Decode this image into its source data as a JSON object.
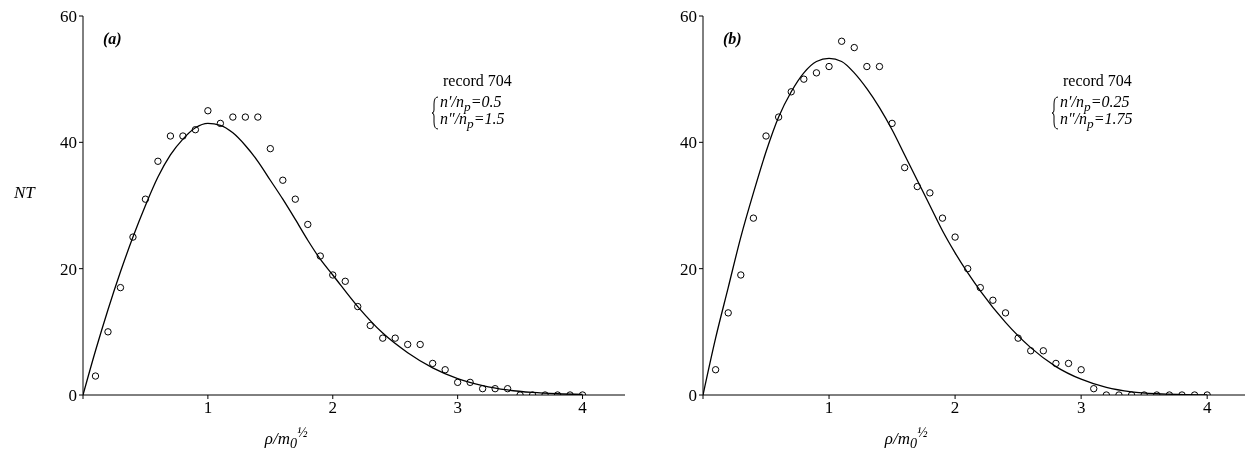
{
  "chart_data": [
    {
      "type": "scatter",
      "xlabel": "ρ/m$_{0}$$^{½}$",
      "ylabel": "NT",
      "xlim": [
        0,
        4.34
      ],
      "ylim": [
        0,
        60
      ],
      "xticks": [
        {
          "value": 0,
          "label": null
        },
        1,
        2,
        3,
        4
      ],
      "yticks": [
        0,
        20,
        40,
        60
      ],
      "grid": false,
      "legend": false,
      "marker": "circle",
      "annotations": [
        "(a)",
        "record 704",
        "n′/n$_{p}$=0.5",
        "n″/n$_{p}$=1.5"
      ],
      "series": [
        {
          "color": "#000000",
          "x": [
            0.1,
            0.2,
            0.3,
            0.4,
            0.5,
            0.6,
            0.7,
            0.8,
            0.9,
            1.0,
            1.1,
            1.2,
            1.3,
            1.4,
            1.5,
            1.6,
            1.7,
            1.8,
            1.9,
            2.0,
            2.1,
            2.2,
            2.3,
            2.4,
            2.5,
            2.6,
            2.7,
            2.8,
            2.9,
            3.0,
            3.1,
            3.2,
            3.3,
            3.4,
            3.5,
            3.6,
            3.7,
            3.8,
            3.9,
            4.0
          ],
          "values": [
            3,
            10,
            17,
            25,
            31,
            37,
            41,
            41,
            42,
            45,
            43,
            44,
            44,
            44,
            39,
            34,
            31,
            27,
            22,
            19,
            18,
            14,
            11,
            9,
            9,
            8,
            8,
            5,
            4,
            2,
            2,
            1,
            1,
            1,
            0,
            0,
            0,
            0,
            0,
            0
          ]
        },
        {
          "type": "line",
          "color": "#000000",
          "marker": "none",
          "line_style": "solid",
          "x": [
            0,
            0.1,
            0.2,
            0.3,
            0.4,
            0.5,
            0.6,
            0.7,
            0.8,
            0.9,
            1.0,
            1.1,
            1.2,
            1.3,
            1.4,
            1.5,
            1.6,
            1.7,
            1.8,
            1.9,
            2.0,
            2.2,
            2.4,
            2.6,
            2.8,
            3.0,
            3.2,
            3.4,
            3.6,
            3.8,
            4.0
          ],
          "values": [
            0,
            7,
            13.5,
            19.5,
            25,
            30,
            34.5,
            38,
            40.5,
            42.3,
            43,
            42.7,
            41.5,
            39.5,
            37,
            34,
            31,
            27.8,
            24.5,
            21.5,
            19,
            14,
            9.8,
            6.7,
            4.3,
            2.6,
            1.5,
            0.8,
            0.4,
            0.2,
            0.1
          ]
        }
      ]
    },
    {
      "type": "scatter",
      "xlabel": "ρ/m$_{0}$$^{½}$",
      "xlim": [
        0,
        4.3
      ],
      "ylim": [
        0,
        60
      ],
      "xticks": [
        {
          "value": 0,
          "label": null
        },
        1,
        2,
        3,
        4
      ],
      "yticks": [
        0,
        20,
        40,
        60
      ],
      "grid": false,
      "legend": false,
      "marker": "circle",
      "annotations": [
        "(b)",
        "record 704",
        "n′/n$_{p}$=0.25",
        "n″/n$_{p}$=1.75"
      ],
      "series": [
        {
          "color": "#000000",
          "x": [
            0.1,
            0.2,
            0.3,
            0.4,
            0.5,
            0.6,
            0.7,
            0.8,
            0.9,
            1.0,
            1.1,
            1.2,
            1.3,
            1.4,
            1.5,
            1.6,
            1.7,
            1.8,
            1.9,
            2.0,
            2.1,
            2.2,
            2.3,
            2.4,
            2.5,
            2.6,
            2.7,
            2.8,
            2.9,
            3.0,
            3.1,
            3.2,
            3.3,
            3.4,
            3.5,
            3.6,
            3.7,
            3.8,
            3.9,
            4.0
          ],
          "values": [
            4,
            13,
            19,
            28,
            41,
            44,
            48,
            50,
            51,
            52,
            56,
            55,
            52,
            52,
            43,
            36,
            33,
            32,
            28,
            25,
            20,
            17,
            15,
            13,
            9,
            7,
            7,
            5,
            5,
            4,
            1,
            0,
            0,
            0,
            0,
            0,
            0,
            0,
            0,
            0
          ]
        },
        {
          "type": "line",
          "color": "#000000",
          "marker": "none",
          "line_style": "solid",
          "x": [
            0,
            0.1,
            0.2,
            0.3,
            0.4,
            0.5,
            0.6,
            0.7,
            0.8,
            0.9,
            1.0,
            1.1,
            1.2,
            1.3,
            1.4,
            1.5,
            1.6,
            1.7,
            1.8,
            1.9,
            2.0,
            2.2,
            2.4,
            2.6,
            2.8,
            3.0,
            3.2,
            3.4,
            3.6,
            4.0
          ],
          "values": [
            0,
            9,
            17,
            25,
            32,
            38.5,
            44,
            48,
            51,
            52.8,
            53.3,
            52.8,
            51,
            48.5,
            45.5,
            42,
            38,
            34,
            30,
            26,
            22.5,
            16.5,
            11.5,
            7.5,
            4.5,
            2.5,
            1.2,
            0.5,
            0.2,
            0
          ]
        }
      ]
    }
  ]
}
